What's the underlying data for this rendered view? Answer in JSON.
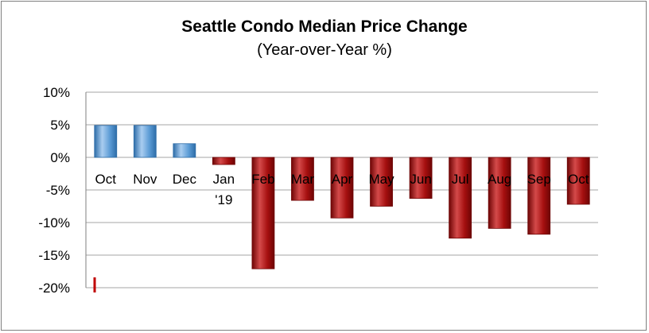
{
  "chart_data": {
    "type": "bar",
    "title": "Seattle Condo Median Price Change",
    "subtitle": "(Year-over-Year %)",
    "xlabel": "",
    "ylabel": "",
    "categories": [
      "Oct",
      "Nov",
      "Dec",
      "Jan\n'19",
      "Feb",
      "Mar",
      "Apr",
      "May",
      "Jun",
      "Jul",
      "Aug",
      "Sep",
      "Oct"
    ],
    "values": [
      4.9,
      4.9,
      2.1,
      -1.1,
      -17.1,
      -6.6,
      -9.3,
      -7.5,
      -6.3,
      -12.4,
      -10.9,
      -11.8,
      -7.2
    ],
    "ylim": [
      -20,
      10
    ],
    "yticks": [
      10,
      5,
      0,
      -5,
      -10,
      -15,
      -20
    ],
    "ytick_labels": [
      "10%",
      "5%",
      "0%",
      "-5%",
      "-10%",
      "-15%",
      "-20%"
    ],
    "grid": true,
    "legend": "none",
    "colors": {
      "positive": "#5b9bd5",
      "positive_light": "#a9cdf0",
      "positive_dark": "#2e6da8",
      "negative": "#a50f0f",
      "negative_light": "#d44a4a",
      "negative_dark": "#6e0505",
      "gridline": "#a6a6a6",
      "axis": "#7f7f7f",
      "marker": "#c00000"
    }
  }
}
